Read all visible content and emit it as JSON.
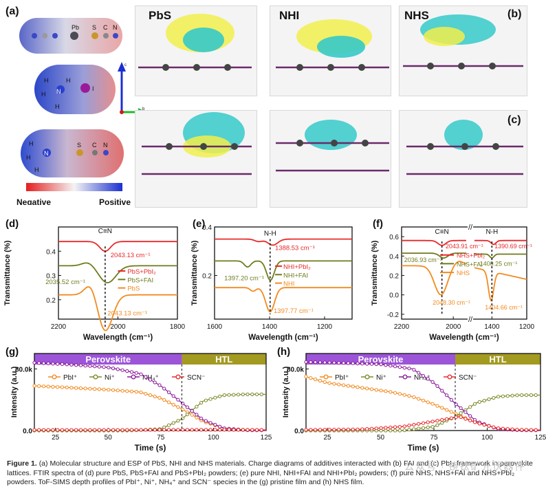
{
  "panels": {
    "a": {
      "label": "(a)",
      "atoms_top": [
        "Pb",
        "S",
        "C",
        "N"
      ],
      "atoms_mid": [
        "H",
        "H",
        "N",
        "H",
        "H",
        "I"
      ],
      "atoms_bottom": [
        "H",
        "H",
        "N",
        "H",
        "S",
        "C",
        "N"
      ],
      "neg": "Negative",
      "pos": "Positive",
      "axis_c": "c",
      "axis_b": "b"
    },
    "b": {
      "label": "(b)"
    },
    "c": {
      "label": "(c)"
    },
    "titles": [
      "PbS",
      "NHI",
      "NHS"
    ]
  },
  "chart_data": [
    {
      "id": "d",
      "type": "line",
      "label": "(d)",
      "xlabel": "Wavelength (cm⁻¹)",
      "ylabel": "Transmittance (%)",
      "xlim": [
        2200,
        1800
      ],
      "ylim": [
        0.12,
        0.5
      ],
      "xticks": [
        2200,
        2000,
        1800
      ],
      "yticks": [
        0.2,
        0.3,
        0.4
      ],
      "ytick_labels": [
        "0.2",
        "0.3",
        "0.4"
      ],
      "peak_label": "C≡N",
      "series": [
        {
          "name": "PbS+PbI₂",
          "color": "#e8282a"
        },
        {
          "name": "PbS+FAI",
          "color": "#6e7a1c"
        },
        {
          "name": "PbS",
          "color": "#f28a1e"
        }
      ],
      "annotations": [
        {
          "text": "2043.13 cm⁻¹",
          "color": "#e8282a"
        },
        {
          "text": "2035.52 cm⁻¹",
          "color": "#6e7a1c"
        },
        {
          "text": "2043.13 cm⁻¹",
          "color": "#f28a1e"
        }
      ]
    },
    {
      "id": "e",
      "type": "line",
      "label": "(e)",
      "xlabel": "Wavelength (cm⁻¹)",
      "ylabel": "Transmittance (%)",
      "xlim": [
        1600,
        1100
      ],
      "ylim": [
        0.02,
        0.4
      ],
      "xticks": [
        1600,
        1400,
        1200
      ],
      "yticks": [
        0.2,
        0.4
      ],
      "ytick_labels": [
        "0.2",
        "0.4"
      ],
      "peak_label": "N-H",
      "series": [
        {
          "name": "NHI+PbI₂",
          "color": "#e8282a"
        },
        {
          "name": "NHI+FAI",
          "color": "#6e7a1c"
        },
        {
          "name": "NHI",
          "color": "#f28a1e"
        }
      ],
      "annotations": [
        {
          "text": "1388.53 cm⁻¹",
          "color": "#e8282a"
        },
        {
          "text": "1397.20 cm⁻¹",
          "color": "#6e7a1c"
        },
        {
          "text": "1397.77 cm⁻¹",
          "color": "#f28a1e"
        }
      ]
    },
    {
      "id": "f",
      "type": "line",
      "label": "(f)",
      "xlabel": "Wavelength (cm⁻¹)",
      "ylabel": "Transmittance (%)",
      "xticks": [
        2200,
        2000,
        1400,
        1200
      ],
      "yticks": [
        -0.2,
        0.0,
        0.2,
        0.4,
        0.6
      ],
      "ytick_labels": [
        "-0.2",
        "0.0",
        "0.2",
        "0.4",
        "0.6"
      ],
      "peak_labels": [
        "C≡N",
        "N-H"
      ],
      "series": [
        {
          "name": "NHS+PbI₂",
          "color": "#e8282a"
        },
        {
          "name": "NHS+FAI",
          "color": "#6e7a1c"
        },
        {
          "name": "NHS",
          "color": "#f28a1e"
        }
      ],
      "annotations": [
        {
          "text": "2043.91 cm⁻¹",
          "color": "#e8282a"
        },
        {
          "text": "1390.69 cm⁻¹",
          "color": "#e8282a"
        },
        {
          "text": "2036.93 cm⁻¹",
          "color": "#6e7a1c"
        },
        {
          "text": "1400.25 cm⁻¹",
          "color": "#6e7a1c"
        },
        {
          "text": "2048.30 cm⁻¹",
          "color": "#f28a1e"
        },
        {
          "text": "1404.66 cm⁻¹",
          "color": "#f28a1e"
        }
      ]
    },
    {
      "id": "g",
      "type": "scatter",
      "label": "(g)",
      "xlabel": "Time (s)",
      "ylabel": "Intensity (a.u.)",
      "xlim": [
        15,
        125
      ],
      "ylim": [
        0,
        100000
      ],
      "xticks": [
        25,
        50,
        75,
        100,
        125
      ],
      "yticks": [
        0,
        80000
      ],
      "ytick_labels": [
        "0.0",
        "80.0k"
      ],
      "band_left": "Perovskite",
      "band_right": "HTL",
      "band_split": 85,
      "series": [
        {
          "name": "PbI⁺",
          "color": "#f28a1e",
          "marker": "—○—",
          "points": [
            [
              15,
              58000
            ],
            [
              30,
              56000
            ],
            [
              50,
              53000
            ],
            [
              65,
              50000
            ],
            [
              75,
              42000
            ],
            [
              85,
              28000
            ],
            [
              95,
              12000
            ],
            [
              105,
              3000
            ],
            [
              115,
              1000
            ],
            [
              125,
              800
            ]
          ]
        },
        {
          "name": "Ni⁺",
          "color": "#7a8a2a",
          "marker": "—○—",
          "points": [
            [
              15,
              0
            ],
            [
              60,
              0
            ],
            [
              75,
              2000
            ],
            [
              85,
              15000
            ],
            [
              95,
              38000
            ],
            [
              105,
              46000
            ],
            [
              115,
              47000
            ],
            [
              125,
              47000
            ]
          ]
        },
        {
          "name": "NH₄⁺",
          "color": "#8a1a9a",
          "marker": "—○—",
          "points": [
            [
              15,
              88000
            ],
            [
              30,
              86000
            ],
            [
              50,
              82000
            ],
            [
              65,
              74000
            ],
            [
              75,
              58000
            ],
            [
              85,
              36000
            ],
            [
              95,
              14000
            ],
            [
              105,
              3000
            ],
            [
              115,
              500
            ],
            [
              125,
              200
            ]
          ]
        },
        {
          "name": "SCN⁻",
          "color": "#e8282a",
          "marker": "—○—",
          "points": [
            [
              15,
              800
            ],
            [
              50,
              800
            ],
            [
              85,
              1000
            ],
            [
              100,
              1000
            ],
            [
              125,
              800
            ]
          ]
        }
      ]
    },
    {
      "id": "h",
      "type": "scatter",
      "label": "(h)",
      "xlabel": "Time (s)",
      "ylabel": "Intensity (a.u.)",
      "xlim": [
        15,
        125
      ],
      "ylim": [
        0,
        100000
      ],
      "xticks": [
        25,
        50,
        75,
        100,
        125
      ],
      "yticks": [
        0,
        80000
      ],
      "ytick_labels": [
        "0.0",
        "80.0k"
      ],
      "band_left": "Perovskite",
      "band_right": "HTL",
      "band_split": 85,
      "series": [
        {
          "name": "PbI⁺",
          "color": "#f28a1e",
          "marker": "—○—",
          "points": [
            [
              15,
              70000
            ],
            [
              25,
              62000
            ],
            [
              40,
              56000
            ],
            [
              55,
              50000
            ],
            [
              65,
              44000
            ],
            [
              75,
              34000
            ],
            [
              85,
              22000
            ],
            [
              95,
              10000
            ],
            [
              105,
              3000
            ],
            [
              115,
              1000
            ],
            [
              125,
              700
            ]
          ]
        },
        {
          "name": "Ni⁺",
          "color": "#7a8a2a",
          "marker": "—○—",
          "points": [
            [
              15,
              0
            ],
            [
              60,
              0
            ],
            [
              75,
              5000
            ],
            [
              85,
              18000
            ],
            [
              95,
              36000
            ],
            [
              105,
              44000
            ],
            [
              115,
              46000
            ],
            [
              125,
              46000
            ]
          ]
        },
        {
          "name": "NH₄⁺",
          "color": "#8a1a9a",
          "marker": "—○—",
          "points": [
            [
              15,
              89000
            ],
            [
              30,
              88000
            ],
            [
              50,
              86000
            ],
            [
              65,
              80000
            ],
            [
              75,
              62000
            ],
            [
              85,
              35000
            ],
            [
              95,
              12000
            ],
            [
              105,
              2000
            ],
            [
              115,
              500
            ],
            [
              125,
              200
            ]
          ]
        },
        {
          "name": "SCN⁻",
          "color": "#e8282a",
          "marker": "—○—",
          "points": [
            [
              15,
              1000
            ],
            [
              40,
              1500
            ],
            [
              60,
              5000
            ],
            [
              75,
              12000
            ],
            [
              87,
              18000
            ],
            [
              95,
              10000
            ],
            [
              105,
              3000
            ],
            [
              115,
              1000
            ],
            [
              125,
              600
            ]
          ]
        }
      ]
    }
  ],
  "caption": {
    "lead": "Figure 1.",
    "text": "(a) Molecular structure and ESP of PbS, NHI and NHS materials. Charge diagrams of additives interacted with (b) FAI and (c) PbI₂ framework in perovskite lattices. FTIR spectra of (d) pure PbS, PbS+FAI and PbS+PbI₂ powders; (e) pure NHI, NHI+FAI and NHI+PbI₂ powders; (f) pure NHS, NHS+FAI and NHS+PbI₂ powders. ToF-SIMS depth profiles of PbI⁺, Ni⁺, NH₄⁺ and SCN⁻ species in the (g) pristine film and (h) NHS film."
  },
  "watermark": "公众号 · 铙钛矿光伏器件"
}
